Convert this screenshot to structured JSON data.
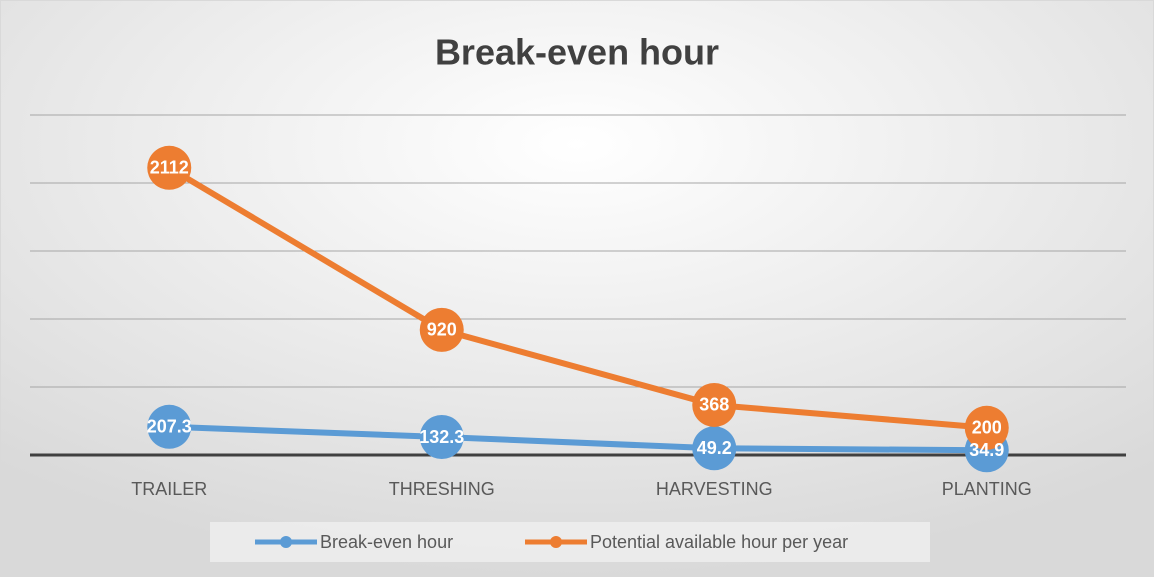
{
  "chart_data": {
    "type": "line",
    "title": "Break-even hour",
    "categories": [
      "TRAILER",
      "THRESHING",
      "HARVESTING",
      "PLANTING"
    ],
    "series": [
      {
        "name": "Break-even hour",
        "color": "#5b9bd5",
        "values": [
          207.3,
          132.3,
          49.2,
          34.9
        ]
      },
      {
        "name": "Potential available hour per year",
        "color": "#ed7d31",
        "values": [
          2112,
          920,
          368,
          200
        ]
      }
    ],
    "ylim": [
      0,
      2500
    ],
    "yticks": [
      0,
      500,
      1000,
      1500,
      2000,
      2500
    ],
    "grid": true,
    "legend": "bottom"
  }
}
